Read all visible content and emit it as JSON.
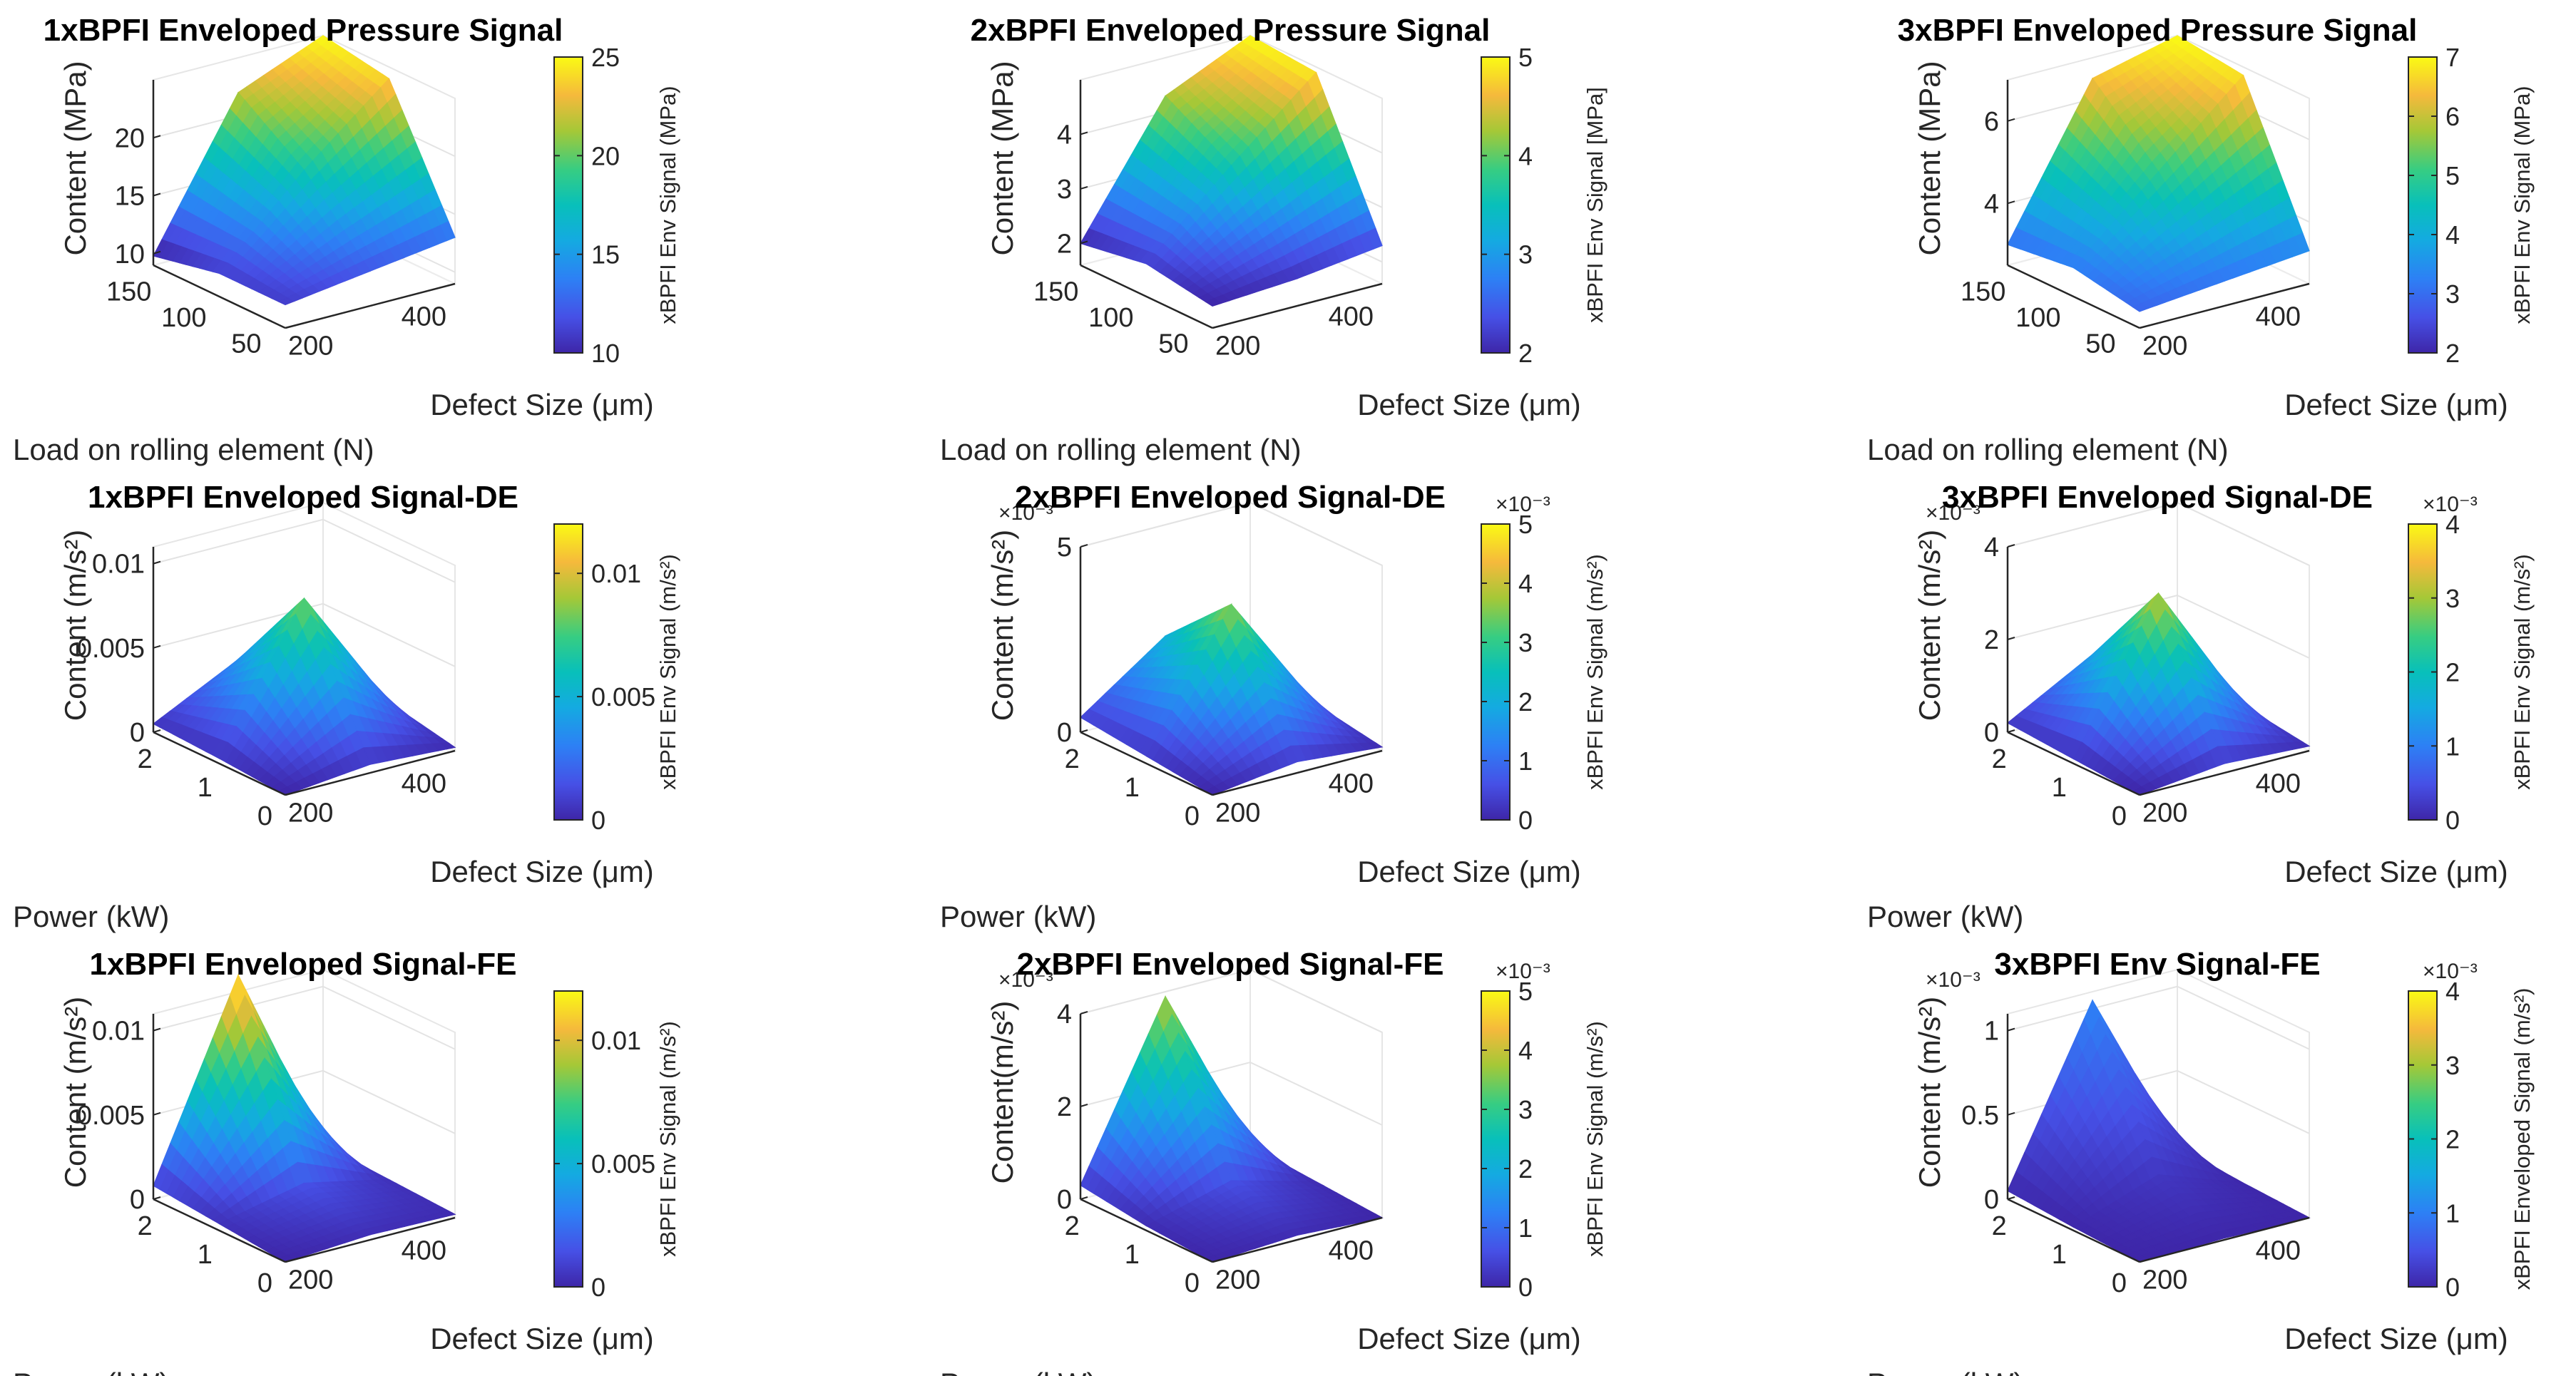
{
  "chart_data": [
    {
      "type": "surface",
      "title": "1xBPFI Enveloped Pressure Signal",
      "xlabel": "Defect Size (μm)",
      "ylabel": "Load on rolling element (N)",
      "zlabel": "Content (MPa)",
      "x_ticks": [
        "200",
        "400"
      ],
      "y_ticks": [
        "150",
        "100",
        "50"
      ],
      "z_ticks": [
        "10",
        "15",
        "20"
      ],
      "zlim": [
        9,
        25
      ],
      "z_exponent": "",
      "colorbar": {
        "label": "xBPFI Env Signal (MPa)",
        "ticks": [
          "10",
          "15",
          "20",
          "25"
        ],
        "range": [
          10,
          25
        ],
        "exponent": ""
      },
      "x_values": [
        150,
        300,
        450
      ],
      "y_values": [
        160,
        100,
        40
      ],
      "z": [
        [
          9.8,
          22,
          25
        ],
        [
          11,
          18,
          24
        ],
        [
          11,
          12,
          13
        ]
      ]
    },
    {
      "type": "surface",
      "title": "2xBPFI Enveloped Pressure Signal",
      "xlabel": "Defect Size (μm)",
      "ylabel": "Load on rolling element (N)",
      "zlabel": "Content (MPa)",
      "x_ticks": [
        "200",
        "400"
      ],
      "y_ticks": [
        "150",
        "100",
        "50"
      ],
      "z_ticks": [
        "2",
        "3",
        "4"
      ],
      "zlim": [
        1.6,
        5
      ],
      "z_exponent": "",
      "colorbar": {
        "label": "xBPFI Env Signal [MPa]",
        "ticks": [
          "2",
          "3",
          "4",
          "5"
        ],
        "range": [
          2,
          5
        ],
        "exponent": ""
      },
      "x_values": [
        150,
        300,
        450
      ],
      "y_values": [
        160,
        100,
        40
      ],
      "z": [
        [
          2.0,
          4.3,
          5.0
        ],
        [
          2.2,
          3.6,
          4.9
        ],
        [
          2.0,
          2.1,
          2.3
        ]
      ]
    },
    {
      "type": "surface",
      "title": "3xBPFI Enveloped Pressure Signal",
      "xlabel": "Defect Size (μm)",
      "ylabel": "Load on rolling element (N)",
      "zlabel": "Content (MPa)",
      "x_ticks": [
        "200",
        "400"
      ],
      "y_ticks": [
        "150",
        "100",
        "50"
      ],
      "z_ticks": [
        "4",
        "6"
      ],
      "zlim": [
        2.5,
        7
      ],
      "z_exponent": "",
      "colorbar": {
        "label": "xBPFI Env Signal (MPa)",
        "ticks": [
          "2",
          "3",
          "4",
          "5",
          "6",
          "7"
        ],
        "range": [
          2,
          7
        ],
        "exponent": ""
      },
      "x_values": [
        150,
        300,
        450
      ],
      "y_values": [
        160,
        100,
        40
      ],
      "z": [
        [
          3.0,
          6.5,
          7.0
        ],
        [
          3.2,
          5.0,
          6.8
        ],
        [
          2.9,
          3.1,
          3.3
        ]
      ]
    },
    {
      "type": "surface",
      "title": "1xBPFI Enveloped Signal-DE",
      "xlabel": "Defect Size (μm)",
      "ylabel": "Power (kW)",
      "zlabel": "Content (m/s²)",
      "x_ticks": [
        "200",
        "400"
      ],
      "y_ticks": [
        "2",
        "1",
        "0"
      ],
      "z_ticks": [
        "0",
        "0.005",
        "0.01"
      ],
      "zlim": [
        0,
        0.011
      ],
      "z_exponent": "",
      "colorbar": {
        "label": "xBPFI Env Signal (m/s²)",
        "ticks": [
          "0",
          "0.005",
          "0.01"
        ],
        "range": [
          0,
          0.012
        ],
        "exponent": ""
      },
      "x_values": [
        150,
        300,
        450
      ],
      "y_values": [
        2.2,
        1.1,
        0
      ],
      "z": [
        [
          0.0005,
          0.003,
          0.001
        ],
        [
          0.0003,
          0.0085,
          0.001
        ],
        [
          0.0,
          0.0005,
          0.0002
        ]
      ]
    },
    {
      "type": "surface",
      "title": "2xBPFI Enveloped Signal-DE",
      "xlabel": "Defect Size (μm)",
      "ylabel": "Power (kW)",
      "zlabel": "Content (m/s²)",
      "x_ticks": [
        "200",
        "400"
      ],
      "y_ticks": [
        "2",
        "1",
        "0"
      ],
      "z_ticks": [
        "0",
        "5"
      ],
      "zlim": [
        0,
        5
      ],
      "z_exponent": "×10⁻³",
      "colorbar": {
        "label": "xBPFI Env Signal (m/s²)",
        "ticks": [
          "0",
          "1",
          "2",
          "3",
          "4",
          "5"
        ],
        "range": [
          0,
          5
        ],
        "exponent": "×10⁻³"
      },
      "x_values": [
        150,
        300,
        450
      ],
      "y_values": [
        2.2,
        1.1,
        0
      ],
      "z": [
        [
          0.4,
          2.0,
          0.5
        ],
        [
          0.2,
          3.7,
          0.4
        ],
        [
          0.0,
          0.3,
          0.1
        ]
      ]
    },
    {
      "type": "surface",
      "title": "3xBPFI Enveloped Signal-DE",
      "xlabel": "Defect Size (μm)",
      "ylabel": "Power (kW)",
      "zlabel": "Content (m/s²)",
      "x_ticks": [
        "200",
        "400"
      ],
      "y_ticks": [
        "2",
        "1",
        "0"
      ],
      "z_ticks": [
        "0",
        "2",
        "4"
      ],
      "zlim": [
        0,
        4
      ],
      "z_exponent": "×10⁻³",
      "colorbar": {
        "label": "xBPFI Env Signal (m/s²)",
        "ticks": [
          "0",
          "1",
          "2",
          "3",
          "4"
        ],
        "range": [
          0,
          4
        ],
        "exponent": "×10⁻³"
      },
      "x_values": [
        150,
        300,
        450
      ],
      "y_values": [
        2.2,
        1.1,
        0
      ],
      "z": [
        [
          0.2,
          1.2,
          0.3
        ],
        [
          0.1,
          3.2,
          0.3
        ],
        [
          0.0,
          0.2,
          0.1
        ]
      ]
    },
    {
      "type": "surface",
      "title": "1xBPFI Enveloped Signal-FE",
      "xlabel": "Defect Size (μm)",
      "ylabel": "Power (kW)",
      "zlabel": "Content (m/s²)",
      "x_ticks": [
        "200",
        "400"
      ],
      "y_ticks": [
        "2",
        "1",
        "0"
      ],
      "z_ticks": [
        "0",
        "0.005",
        "0.01"
      ],
      "zlim": [
        0,
        0.011
      ],
      "z_exponent": "",
      "colorbar": {
        "label": "xBPFI Env Signal (m/s²)",
        "ticks": [
          "0",
          "0.005",
          "0.01"
        ],
        "range": [
          0,
          0.012
        ],
        "exponent": ""
      },
      "x_values": [
        150,
        300,
        450
      ],
      "y_values": [
        2.2,
        1.1,
        0
      ],
      "z": [
        [
          0.0008,
          0.012,
          0.0006
        ],
        [
          0.0004,
          0.0015,
          0.0004
        ],
        [
          0.0,
          0.0003,
          0.0002
        ]
      ]
    },
    {
      "type": "surface",
      "title": "2xBPFI Enveloped Signal-FE",
      "xlabel": "Defect Size (μm)",
      "ylabel": "Power (kW)",
      "zlabel": "Content(m/s²)",
      "x_ticks": [
        "200",
        "400"
      ],
      "y_ticks": [
        "2",
        "1",
        "0"
      ],
      "z_ticks": [
        "0",
        "2",
        "4"
      ],
      "zlim": [
        0,
        4
      ],
      "z_exponent": "×10⁻³",
      "colorbar": {
        "label": "xBPFI Env Signal (m/s²)",
        "ticks": [
          "0",
          "1",
          "2",
          "3",
          "4",
          "5"
        ],
        "range": [
          0,
          5
        ],
        "exponent": "×10⁻³"
      },
      "x_values": [
        150,
        300,
        450
      ],
      "y_values": [
        2.2,
        1.1,
        0
      ],
      "z": [
        [
          0.3,
          3.9,
          0.2
        ],
        [
          0.1,
          0.6,
          0.1
        ],
        [
          0.0,
          0.1,
          0.0
        ]
      ]
    },
    {
      "type": "surface",
      "title": "3xBPFI Env Signal-FE",
      "xlabel": "Defect Size (μm)",
      "ylabel": "Power (kW)",
      "zlabel": "Content (m/s²)",
      "x_ticks": [
        "200",
        "400"
      ],
      "y_ticks": [
        "2",
        "1",
        "0"
      ],
      "z_ticks": [
        "0",
        "0.5",
        "1"
      ],
      "zlim": [
        0,
        1.1
      ],
      "z_exponent": "×10⁻³",
      "colorbar": {
        "label": "xBPFI Enveloped Signal (m/s²)",
        "ticks": [
          "0",
          "1",
          "2",
          "3",
          "4"
        ],
        "range": [
          0,
          4
        ],
        "exponent": "×10⁻³"
      },
      "x_values": [
        150,
        300,
        450
      ],
      "y_values": [
        2.2,
        1.1,
        0
      ],
      "z": [
        [
          0.05,
          1.05,
          0.05
        ],
        [
          0.02,
          0.2,
          0.02
        ],
        [
          0.0,
          0.01,
          0.0
        ]
      ]
    }
  ]
}
